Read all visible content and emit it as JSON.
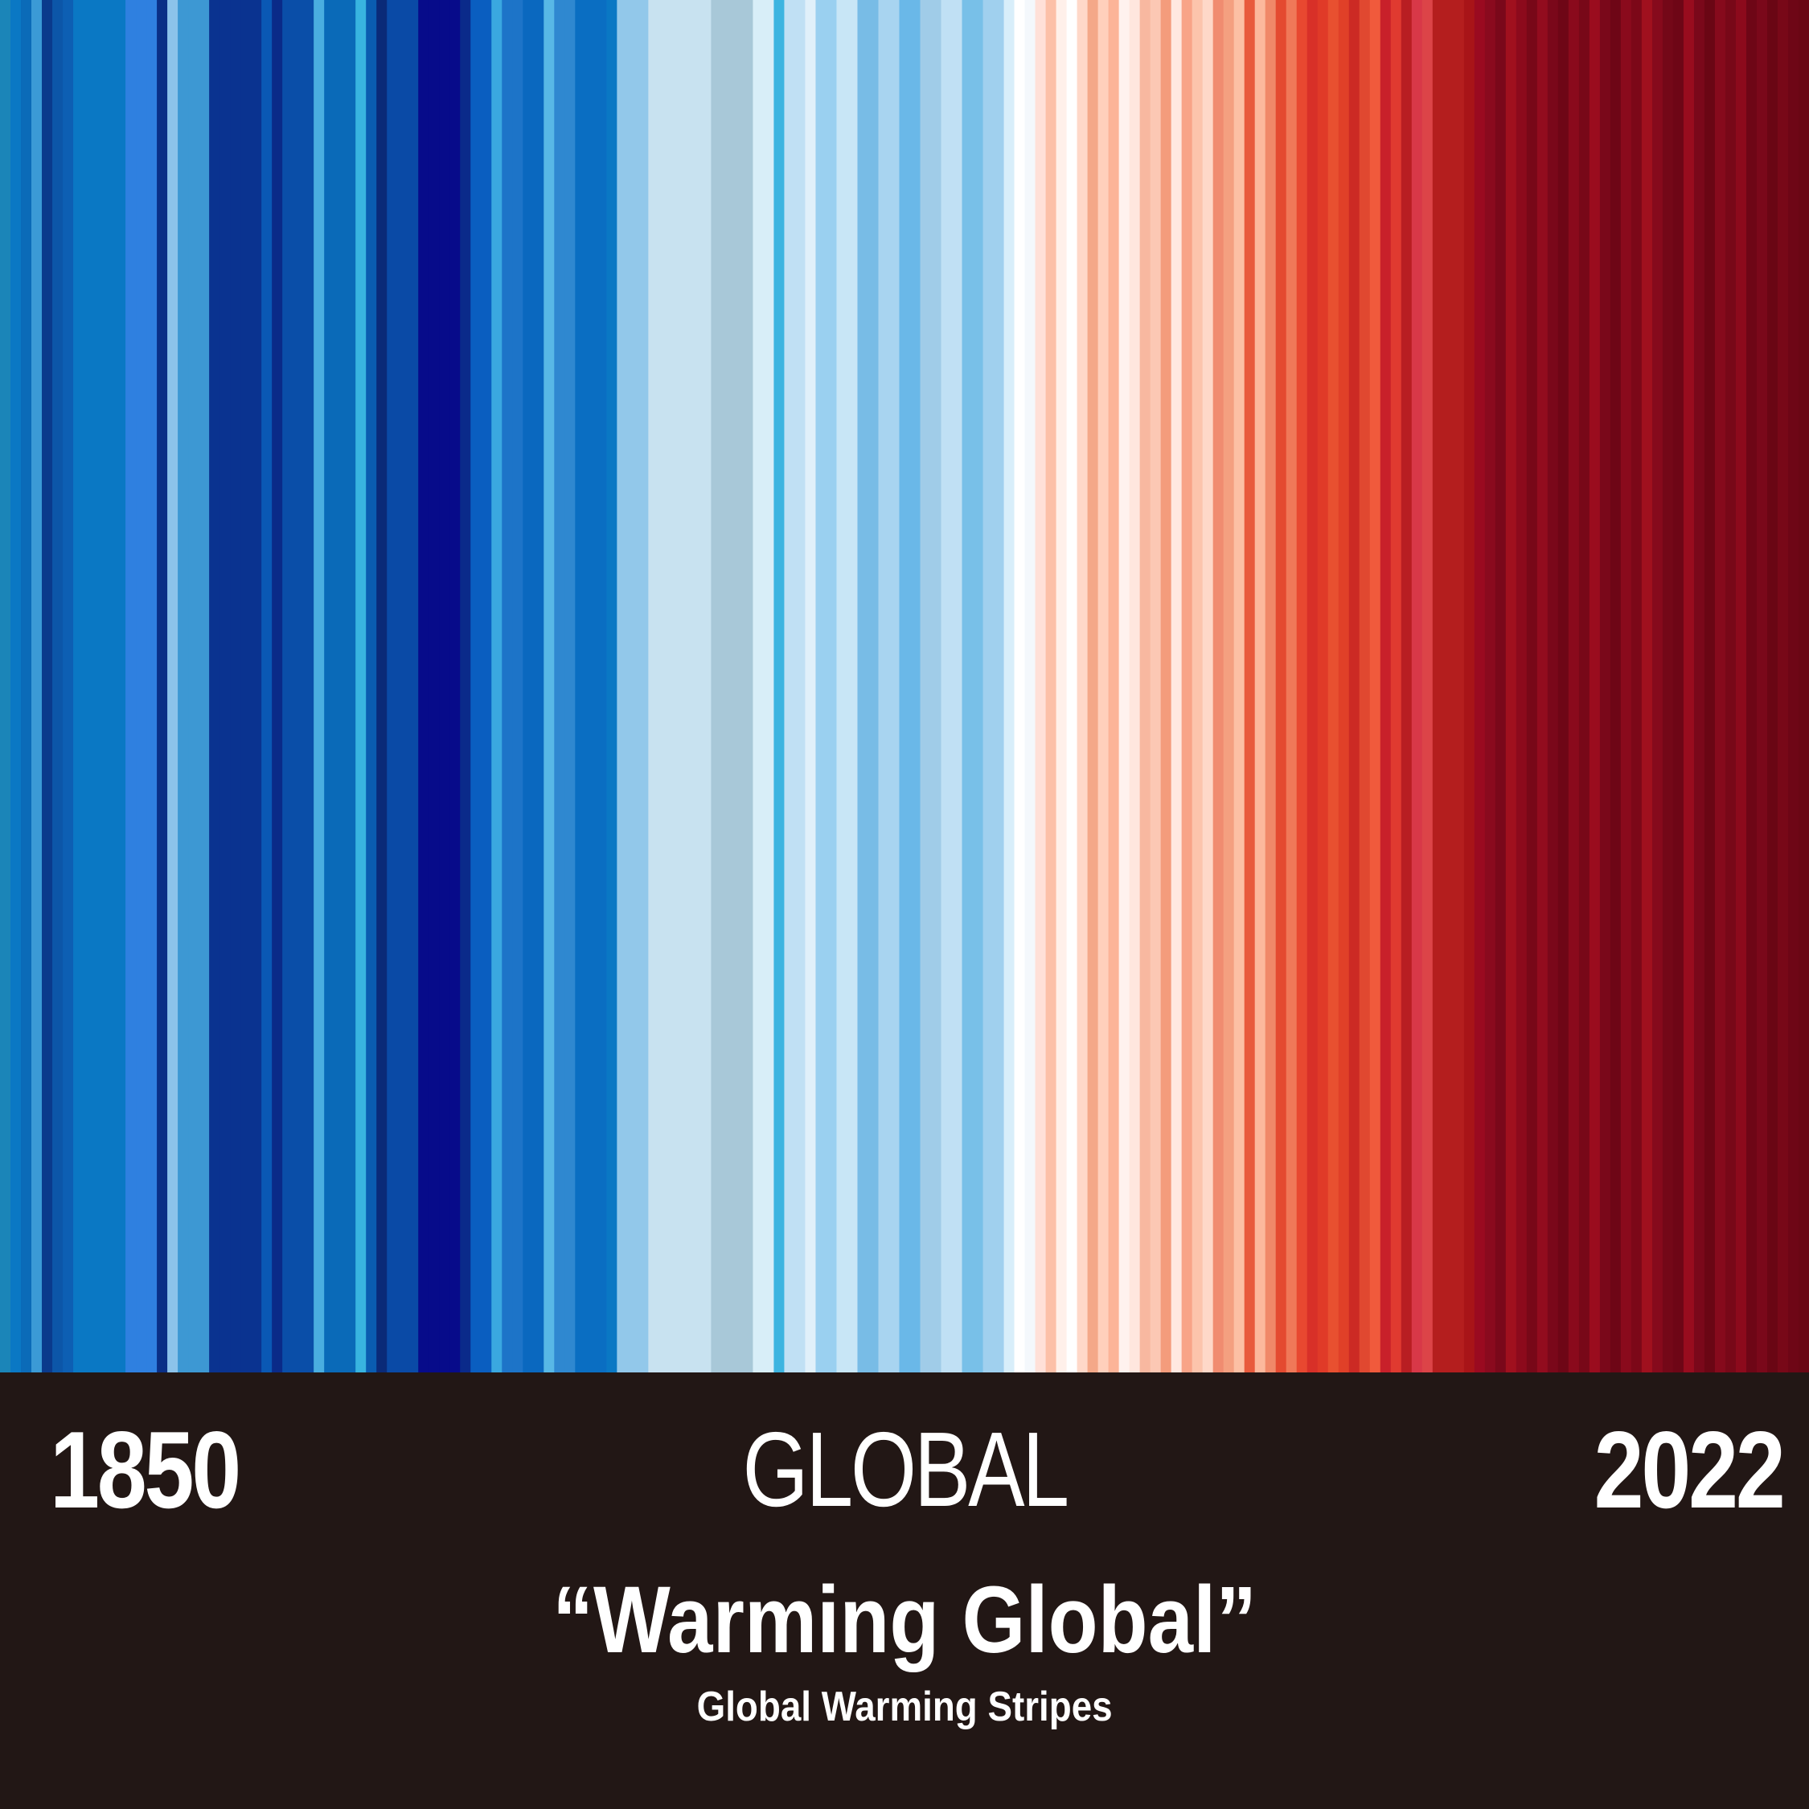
{
  "chart_data": {
    "type": "heatmap",
    "start_year": "1850",
    "end_year": "2022",
    "region": "GLOBAL",
    "title": "“Warming Global”",
    "subtitle": "Global Warming Stripes",
    "colors": [
      "#1b85b8",
      "#0a78c4",
      "#0b6bb8",
      "#3b9ad6",
      "#0a3a8c",
      "#0c56a8",
      "#0d5fb3",
      "#0a78c4",
      "#0a78c4",
      "#0a78c4",
      "#0a78c4",
      "#0a78c4",
      "#2f80e0",
      "#2f80e0",
      "#2f80e0",
      "#0a2f86",
      "#8cc3ea",
      "#3d98d3",
      "#3d98d3",
      "#3d98d3",
      "#0a3390",
      "#0a3390",
      "#0a3390",
      "#0a3390",
      "#0a3390",
      "#0a58b4",
      "#0a2a88",
      "#0a4ea8",
      "#0a4ea8",
      "#0a4ea8",
      "#4aaee0",
      "#0a6ab8",
      "#0a6ab8",
      "#0a6ab8",
      "#38b4e0",
      "#0a5cb0",
      "#0a2a78",
      "#0a4aa6",
      "#0a4aa6",
      "#0a4aa6",
      "#070b8a",
      "#070b8a",
      "#070b8a",
      "#070b8a",
      "#0a2a8a",
      "#0a5ec0",
      "#0a5ec0",
      "#3aa8e0",
      "#1d74c8",
      "#1d74c8",
      "#0a68bf",
      "#0a68bf",
      "#58b8e6",
      "#2f88d0",
      "#2f88d0",
      "#0a6ec2",
      "#0a6ec2",
      "#0a6ec2",
      "#0a78c4",
      "#92c8ea",
      "#92c8ea",
      "#92c8ea",
      "#c8e2f0",
      "#c8e2f0",
      "#c8e2f0",
      "#c8e2f0",
      "#c8e2f0",
      "#c8e2f0",
      "#a8c8d8",
      "#a8c8d8",
      "#a8c8d8",
      "#a8c8d8",
      "#d8eef8",
      "#d8eef8",
      "#3cb4e0",
      "#c0e0f4",
      "#c0e0f4",
      "#e0f0fa",
      "#9ad0f0",
      "#9ad0f0",
      "#c8e6f6",
      "#c8e6f6",
      "#78bce6",
      "#78bce6",
      "#a8d4f0",
      "#a8d4f0",
      "#6ab8e8",
      "#6ab8e8",
      "#a0cce8",
      "#a0cce8",
      "#c0e0f4",
      "#c0e0f4",
      "#78c0e8",
      "#78c0e8",
      "#a0d0ee",
      "#a0d0ee",
      "#d8eefa",
      "#ffffff",
      "#f4f8fc",
      "#ffe0d8",
      "#fcc0a8",
      "#fff0ea",
      "#ffffff",
      "#ffd8c8",
      "#f4a888",
      "#ffd0bc",
      "#fcb498",
      "#fff2ee",
      "#ffe6de",
      "#f8b8a0",
      "#fcc8b4",
      "#f49c7c",
      "#ffe8e0",
      "#f8a488",
      "#fcc4ac",
      "#fed8c8",
      "#f08c70",
      "#f4a080",
      "#fcc0a4",
      "#e85a3c",
      "#fcb89c",
      "#f08868",
      "#e44a30",
      "#f07858",
      "#e84830",
      "#d83028",
      "#e03a28",
      "#e85030",
      "#e04028",
      "#cc2a24",
      "#e04830",
      "#f05a3c",
      "#c8202a",
      "#e03a30",
      "#b81e22",
      "#d83848",
      "#dc4448",
      "#b41e1e",
      "#b41e1e",
      "#b41e1e",
      "#a81418",
      "#9a0a20",
      "#8a0a1e",
      "#7a081a",
      "#a0101e",
      "#8c0a1c",
      "#780818",
      "#920c1e",
      "#7a081a",
      "#6e0616",
      "#8a0a1c",
      "#780818",
      "#9a0c1e",
      "#7a081a",
      "#6e0616",
      "#8a0a1c",
      "#7c0818",
      "#a0101e",
      "#860a1c",
      "#740818",
      "#6e0616",
      "#980c1e",
      "#7a081a",
      "#6a0614",
      "#860a1c",
      "#780818",
      "#8c0a1c",
      "#6e0616",
      "#7a081a",
      "#6a0614",
      "#780818",
      "#6e0616",
      "#6a0614"
    ]
  }
}
